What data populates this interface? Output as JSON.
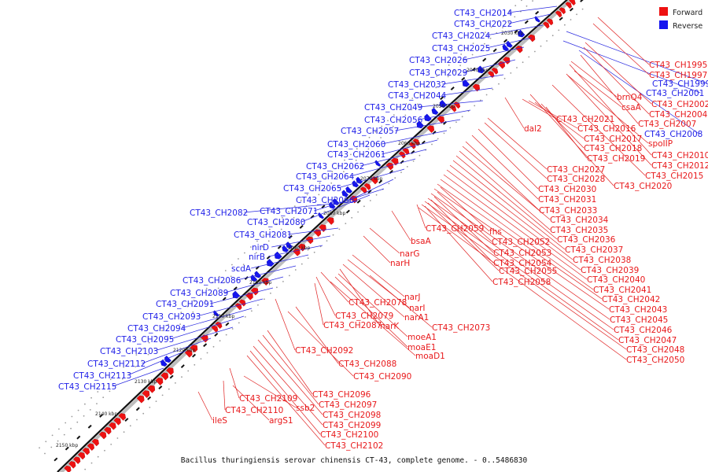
{
  "caption": "Bacillus thuringiensis serovar chinensis CT-43, complete genome. - 0..5486830",
  "legend": {
    "forward_label": "Forward",
    "reverse_label": "Reverse",
    "forward_color": "#ee1111",
    "reverse_color": "#1414ee"
  },
  "ticks": [
    "2030 kbp",
    "2040 kbp",
    "2050 kbp",
    "2060 kbp",
    "2070 kbp",
    "2080 kbp",
    "2090 kbp",
    "2100 kbp",
    "2110 kbp",
    "2120 kbp",
    "2130 kbp",
    "2140 kbp",
    "2150 kbp"
  ],
  "reverse_labels": [
    "CT43_CH2014",
    "CT43_CH2022",
    "CT43_CH2024",
    "CT43_CH2025",
    "CT43_CH2026",
    "CT43_CH2029",
    "CT43_CH2032",
    "CT43_CH2044",
    "CT43_CH2049",
    "CT43_CH2056",
    "CT43_CH2057",
    "CT43_CH2060",
    "CT43_CH2061",
    "CT43_CH2062",
    "CT43_CH2064",
    "CT43_CH2065",
    "CT43_CH2066",
    "CT43_CH2071",
    "CT43_CH2082",
    "CT43_CH2080",
    "CT43_CH2081",
    "nirD",
    "nirB",
    "scdA",
    "CT43_CH2086",
    "CT43_CH2089",
    "CT43_CH2091",
    "CT43_CH2093",
    "CT43_CH2094",
    "CT43_CH2095",
    "CT43_CH2103",
    "CT43_CH2112",
    "CT43_CH2113",
    "CT43_CH2115",
    "CT43_CH1999",
    "CT43_CH2001",
    "CT43_CH2008"
  ],
  "forward_labels": [
    "CT43_CH1995",
    "CT43_CH1997",
    "brnQ4",
    "csaA",
    "CT43_CH2002",
    "CT43_CH2004",
    "CT43_CH2007",
    "spoIIP",
    "CT43_CH2010",
    "CT43_CH2012",
    "CT43_CH2015",
    "CT43_CH2020",
    "dal2",
    "CT43_CH2021",
    "CT43_CH2016",
    "CT43_CH2017",
    "CT43_CH2018",
    "CT43_CH2019",
    "CT43_CH2027",
    "CT43_CH2028",
    "CT43_CH2030",
    "CT43_CH2031",
    "CT43_CH2033",
    "CT43_CH2034",
    "CT43_CH2035",
    "CT43_CH2036",
    "CT43_CH2037",
    "CT43_CH2038",
    "CT43_CH2039",
    "CT43_CH2040",
    "CT43_CH2041",
    "CT43_CH2042",
    "CT43_CH2043",
    "CT43_CH2045",
    "CT43_CH2046",
    "CT43_CH2047",
    "CT43_CH2048",
    "CT43_CH2050",
    "CT43_CH2059",
    "fhs",
    "CT43_CH2052",
    "CT43_CH2053",
    "CT43_CH2054",
    "CT43_CH2055",
    "CT43_CH2058",
    "bsaA",
    "narG",
    "narH",
    "narJ",
    "narI",
    "narA1",
    "narK",
    "moeA1",
    "moaE1",
    "moaD1",
    "CT43_CH2073",
    "CT43_CH2078",
    "CT43_CH2079",
    "CT43_CH2087",
    "CT43_CH2092",
    "CT43_CH2088",
    "CT43_CH2090",
    "CT43_CH2096",
    "CT43_CH2097",
    "CT43_CH2098",
    "CT43_CH2099",
    "CT43_CH2100",
    "CT43_CH2102",
    "CT43_CH2109",
    "ssb2",
    "CT43_CH2110",
    "argS1",
    "ileS"
  ]
}
